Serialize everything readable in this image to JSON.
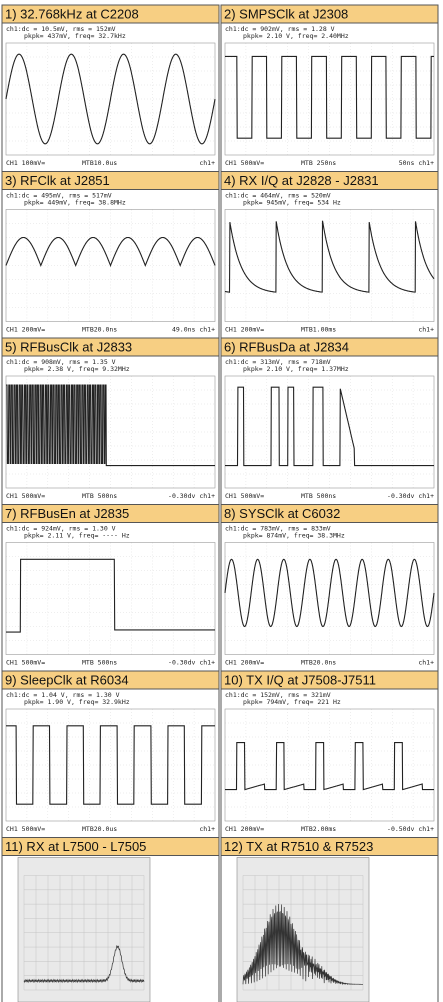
{
  "panels": [
    {
      "title": "1) 32.768kHz at C2208",
      "readout": [
        "ch1:dc = 10.5mV, rms = 152mV",
        "pkpk= 437mV, freq= 32.7kHz"
      ],
      "footer": [
        "CH1 100mV=",
        "MTB10.0us",
        "ch1+"
      ]
    },
    {
      "title": "2) SMPSClk at J2308",
      "readout": [
        "ch1:dc = 902mV, rms = 1.28 V",
        "pkpk= 2.10 V, freq= 2.40MHz"
      ],
      "footer": [
        "CH1 500mV=",
        "MTB 250ns",
        "50ns ch1+"
      ]
    },
    {
      "title": "3) RFClk at J2851",
      "readout": [
        "ch1:dc = 495mV, rms = 517mV",
        "pkpk= 449mV, freq= 38.8MHz"
      ],
      "footer": [
        "CH1 200mV=",
        "MTB20.0ns",
        "49.0ns ch1+"
      ]
    },
    {
      "title": "4) RX I/Q at J2828 - J2831",
      "readout": [
        "ch1:dc = 464mV, rms = 520mV",
        "pkpk= 945mV, freq= 534 Hz"
      ],
      "footer": [
        "CH1 200mV=",
        "MTB1.00ms",
        "ch1+"
      ]
    },
    {
      "title": "5) RFBusClk at J2833",
      "readout": [
        "ch1:dc = 908mV, rms = 1.35 V",
        "pkpk= 2.38 V, freq= 9.32MHz"
      ],
      "footer": [
        "CH1 500mV=",
        "MTB 500ns",
        "-0.30dv ch1+"
      ]
    },
    {
      "title": "6) RFBusDa at J2834",
      "readout": [
        "ch1:dc = 313mV, rms = 718mV",
        "pkpk= 2.10 V, freq= 1.37MHz"
      ],
      "footer": [
        "CH1 500mV=",
        "MTB 500ns",
        "-0.30dv ch1+"
      ]
    },
    {
      "title": "7) RFBusEn at J2835",
      "readout": [
        "ch1:dc = 924mV, rms = 1.30 V",
        "pkpk= 2.11 V, freq= ---- Hz"
      ],
      "footer": [
        "CH1 500mV=",
        "MTB 500ns",
        "-0.30dv ch1+"
      ]
    },
    {
      "title": "8) SYSClk at C6032",
      "readout": [
        "ch1:dc = 783mV, rms = 833mV",
        "pkpk= 874mV, freq= 38.3MHz"
      ],
      "footer": [
        "CH1 200mV=",
        "MTB20.0ns",
        "ch1+"
      ]
    },
    {
      "title": "9) SleepClk at R6034",
      "readout": [
        "ch1:dc = 1.04 V, rms = 1.30 V",
        "pkpk= 1.90 V, freq= 32.9kHz"
      ],
      "footer": [
        "CH1 500mV=",
        "MTB20.0us",
        "ch1+"
      ]
    },
    {
      "title": "10) TX I/Q at J7508-J7511",
      "readout": [
        "ch1:dc = 152mV, rms = 321mV",
        "pkpk= 794mV, freq= 221 Hz"
      ],
      "footer": [
        "CH1 200mV=",
        "MTB2.00ms",
        "-0.50dv ch1+"
      ]
    },
    {
      "title": "11) RX at L7500 - L7505"
    },
    {
      "title": "12) TX at R7510 & R7523"
    }
  ]
}
